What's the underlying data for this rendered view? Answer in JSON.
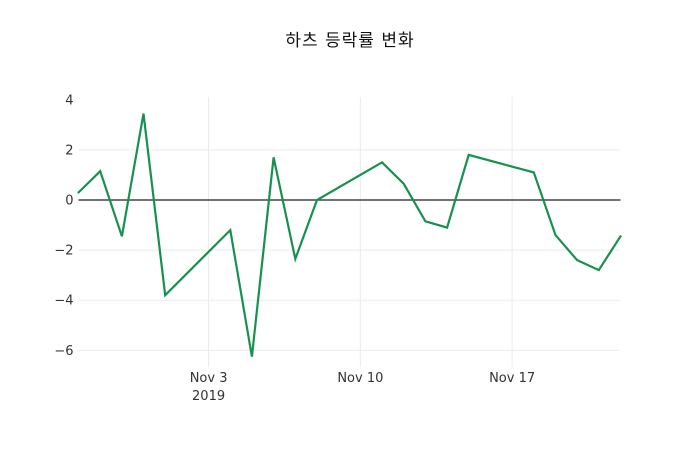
{
  "chart_data": {
    "type": "line",
    "title": "하츠 등락률 변화",
    "xlabel": "",
    "ylabel": "",
    "x_axis": {
      "kind": "date",
      "start_date": "2019-10-28",
      "end_date": "2019-11-22",
      "total_day_span": 25,
      "ticks": [
        {
          "label": "Nov 3",
          "sublabel": "2019",
          "day_offset": 6
        },
        {
          "label": "Nov 10",
          "sublabel": "",
          "day_offset": 13
        },
        {
          "label": "Nov 17",
          "sublabel": "",
          "day_offset": 20
        }
      ]
    },
    "y_axis": {
      "range": [
        -6.7,
        4.1
      ],
      "ticks": [
        {
          "label": "4",
          "value": 4,
          "grid": "none"
        },
        {
          "label": "2",
          "value": 2,
          "grid": "line"
        },
        {
          "label": "0",
          "value": 0,
          "grid": "zero"
        },
        {
          "label": "−2",
          "value": -2,
          "grid": "line"
        },
        {
          "label": "−4",
          "value": -4,
          "grid": "line"
        },
        {
          "label": "−6",
          "value": -6,
          "grid": "line"
        }
      ]
    },
    "series": [
      {
        "name": "하츠 등락률",
        "color": "#179150",
        "dates": [
          "2019-10-28",
          "2019-10-29",
          "2019-10-30",
          "2019-10-31",
          "2019-11-01",
          "2019-11-04",
          "2019-11-05",
          "2019-11-06",
          "2019-11-07",
          "2019-11-08",
          "2019-11-11",
          "2019-11-12",
          "2019-11-13",
          "2019-11-14",
          "2019-11-15",
          "2019-11-18",
          "2019-11-19",
          "2019-11-20",
          "2019-11-21",
          "2019-11-22"
        ],
        "day_offsets": [
          0,
          1,
          2,
          3,
          4,
          7,
          8,
          9,
          10,
          11,
          14,
          15,
          16,
          17,
          18,
          21,
          22,
          23,
          24,
          25
        ],
        "values": [
          0.3,
          1.15,
          -1.45,
          3.45,
          -3.8,
          -1.2,
          -6.25,
          1.7,
          -2.35,
          0.0,
          1.5,
          0.65,
          -0.85,
          -1.1,
          1.8,
          1.1,
          -1.4,
          -2.4,
          -2.8,
          -1.45
        ]
      }
    ],
    "grid": true,
    "legend": "none",
    "colors": {
      "background": "#ffffff",
      "grid_line": "#ebebeb",
      "zero_line": "#444444",
      "tick_label": "#333333",
      "title_text": "#111111"
    }
  }
}
